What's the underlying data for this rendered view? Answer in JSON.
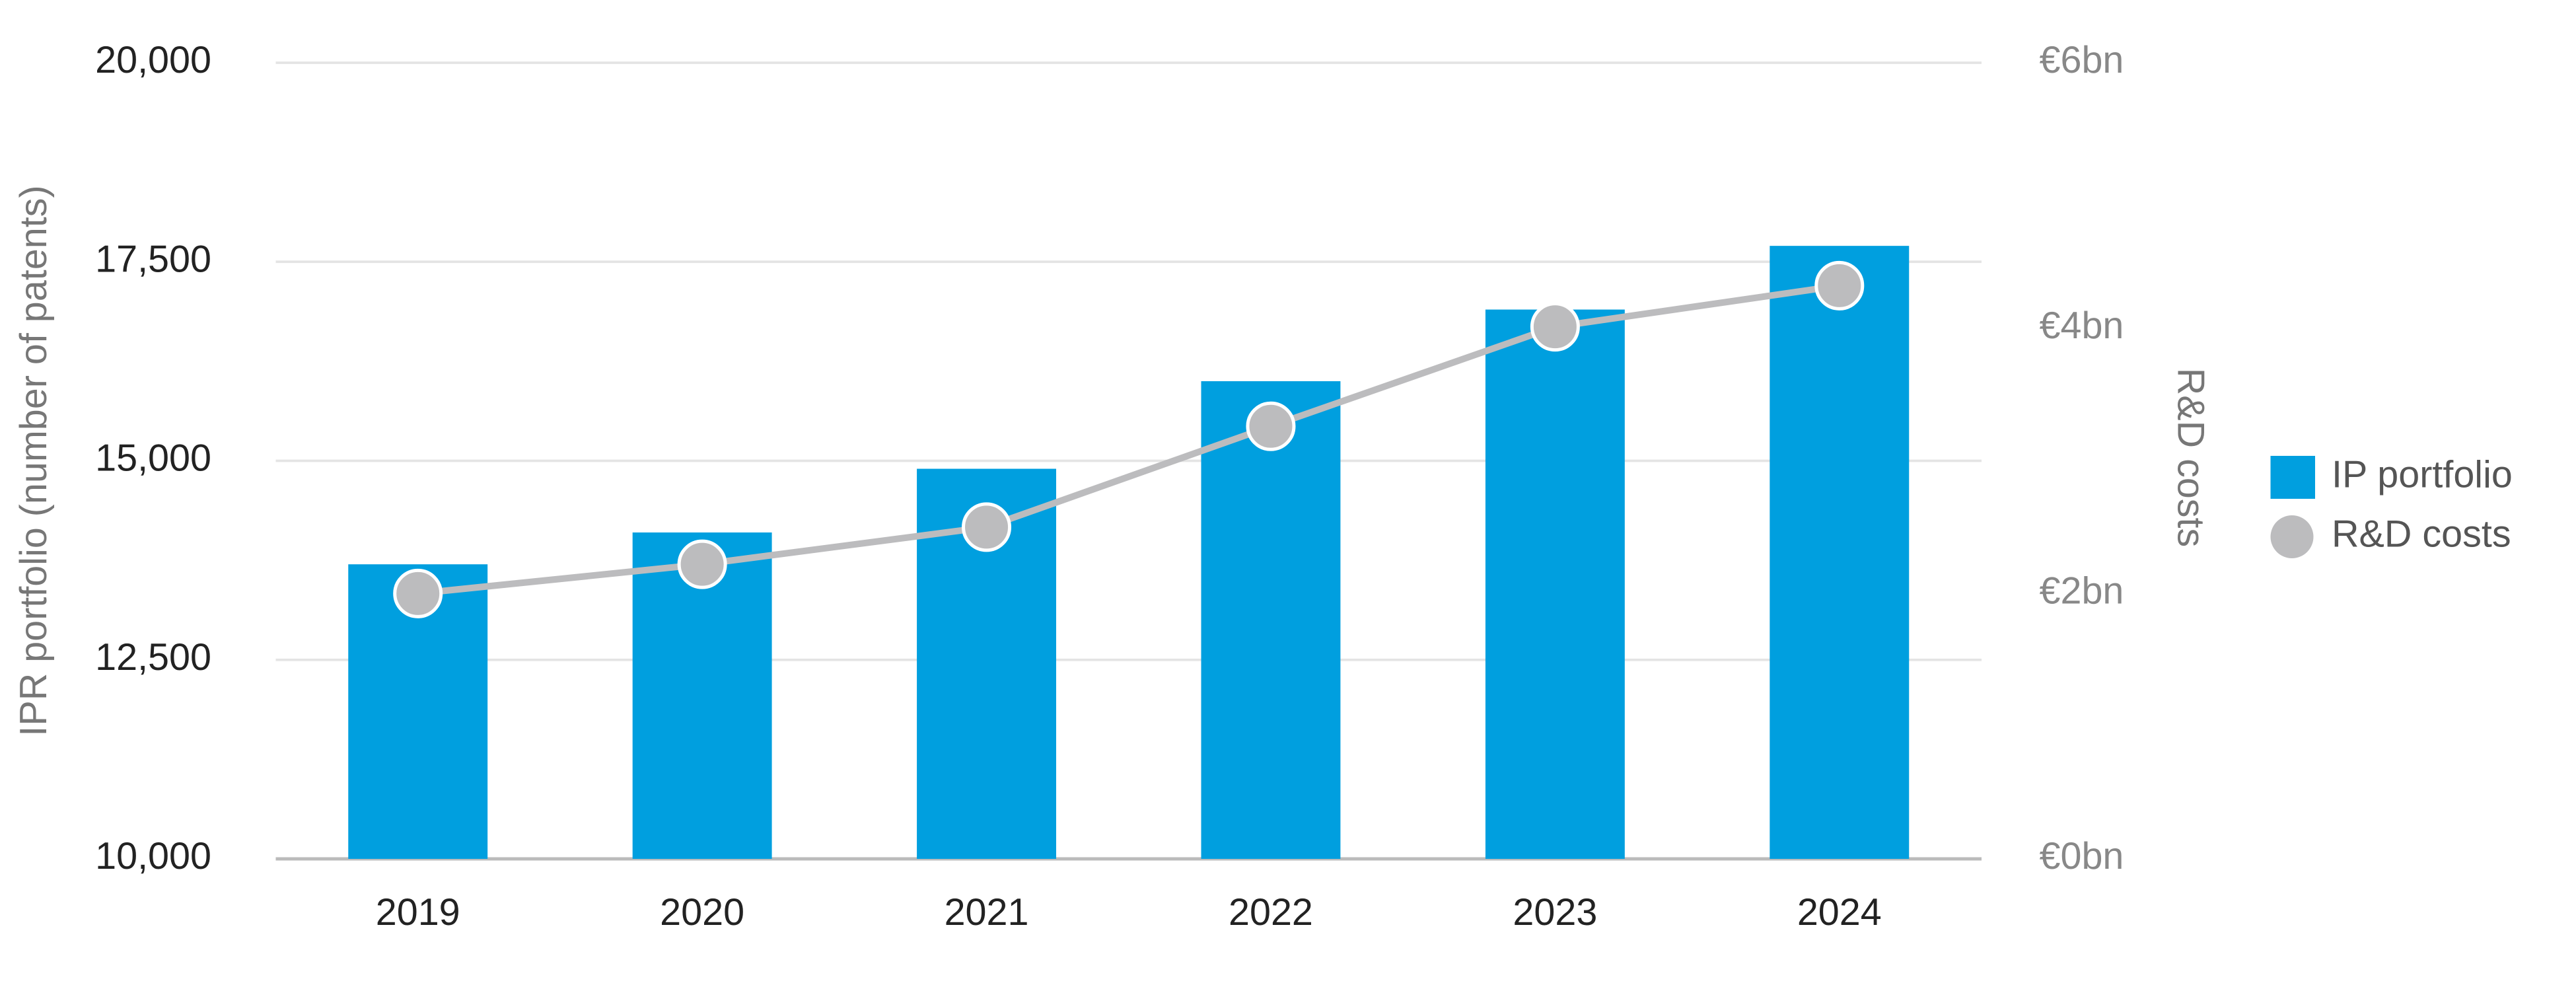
{
  "chart_data": {
    "type": "bar",
    "categories": [
      "2019",
      "2020",
      "2021",
      "2022",
      "2023",
      "2024"
    ],
    "series": [
      {
        "name": "IP portfolio",
        "type": "bar",
        "color": "#009fdf",
        "values": [
          13700,
          14100,
          14900,
          16000,
          16900,
          17700
        ]
      },
      {
        "name": "R&D costs",
        "type": "line",
        "color": "#bcbcbe",
        "axis": "y2",
        "values": [
          2.0,
          2.22,
          2.5,
          3.26,
          4.01,
          4.32
        ]
      }
    ],
    "ylabel": "IPR portfolio (number of patents)",
    "y2label": "R&D costs",
    "ylim": [
      10000,
      20000
    ],
    "yticks": [
      {
        "value": 10000,
        "label": "10,000"
      },
      {
        "value": 12500,
        "label": "12,500"
      },
      {
        "value": 15000,
        "label": "15,000"
      },
      {
        "value": 17500,
        "label": "17,500"
      },
      {
        "value": 20000,
        "label": "20,000"
      }
    ],
    "y2lim": [
      0,
      6
    ],
    "y2ticks": [
      {
        "value": 0,
        "label": "€0bn"
      },
      {
        "value": 2,
        "label": "€2bn"
      },
      {
        "value": 4,
        "label": "€4bn"
      },
      {
        "value": 6,
        "label": "€6bn"
      }
    ],
    "grid": true,
    "legend": "right"
  }
}
